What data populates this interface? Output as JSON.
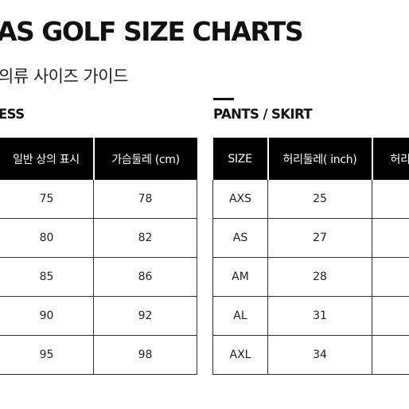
{
  "title": "AS GOLF SIZE CHARTS",
  "subtitle": "의류 사이즈 가이드",
  "top_section": {
    "title": "ESS",
    "headers": [
      "일반 상의 표시",
      "가슴둘레 (cm)"
    ],
    "rows": [
      [
        "75",
        "78"
      ],
      [
        "80",
        "82"
      ],
      [
        "85",
        "86"
      ],
      [
        "90",
        "92"
      ],
      [
        "95",
        "98"
      ]
    ]
  },
  "pants_section": {
    "title": "PANTS / SKIRT",
    "headers": [
      "SIZE",
      "허리둘레( inch)",
      "허리"
    ],
    "rows": [
      [
        "AXS",
        "25",
        ""
      ],
      [
        "AS",
        "27",
        ""
      ],
      [
        "AM",
        "28",
        ""
      ],
      [
        "AL",
        "31",
        ""
      ],
      [
        "AXL",
        "34",
        ""
      ]
    ]
  }
}
